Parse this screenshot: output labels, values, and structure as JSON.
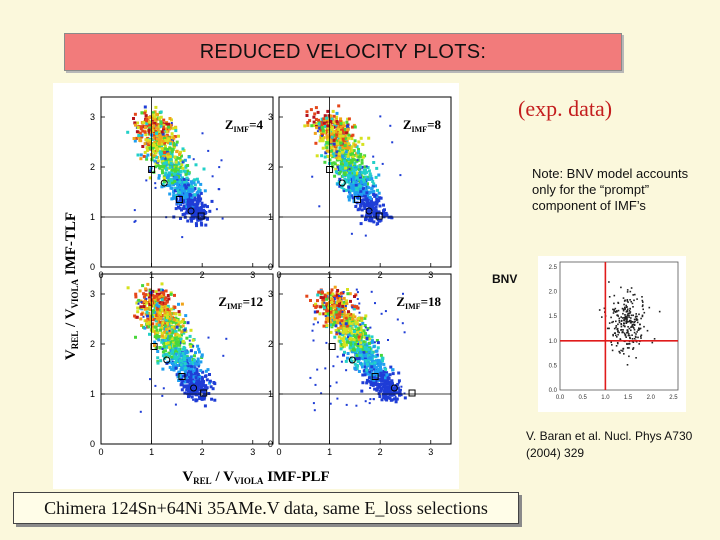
{
  "slide": {
    "title": "REDUCED  VELOCITY PLOTS:",
    "exp_label": "(exp. data)",
    "note": "Note: BNV model accounts only for the “prompt” component of IMF’s",
    "bnv_label": "BNV",
    "reference": "V. Baran et al. Nucl. Phys A730 (2004) 329",
    "footer": "Chimera 124Sn+64Ni  35AMe.V data,  same E_loss selections"
  },
  "chart_data": [
    {
      "type": "heatmap",
      "panels": [
        {
          "label_main": "Z",
          "label_sub": "IMF",
          "label_value": "=4"
        },
        {
          "label_main": "Z",
          "label_sub": "IMF",
          "label_value": "=8"
        },
        {
          "label_main": "Z",
          "label_sub": "IMF",
          "label_value": "=12"
        },
        {
          "label_main": "Z",
          "label_sub": "IMF",
          "label_value": "=18"
        }
      ],
      "y_ticks": [
        "0",
        "1",
        "2",
        "3"
      ],
      "x_ticks": [
        "0",
        "1",
        "2",
        "3"
      ],
      "ylabel_main": "V",
      "ylabel_sub1": "REL",
      "ylabel_mid": " / V",
      "ylabel_sub2": "VIOLA",
      "ylabel_tail": "IMF-TLF",
      "xlabel_main": "V",
      "xlabel_sub1": "REL",
      "xlabel_mid": " / V",
      "xlabel_sub2": "VIOLA",
      "xlabel_tail": "IMF-PLF",
      "xlim": [
        0,
        3.4
      ],
      "ylim": [
        0,
        3.4
      ]
    },
    {
      "type": "scatter",
      "x_ticks": [
        "0.0",
        "0.5",
        "1.0",
        "1.5",
        "2.0",
        "2.5"
      ],
      "y_ticks": [
        "0.0",
        "0.5",
        "1.0",
        "1.5",
        "2.0",
        "2.5"
      ],
      "xlim": [
        0,
        2.6
      ],
      "ylim": [
        0,
        2.6
      ],
      "crosshair": [
        1.0,
        1.0
      ]
    }
  ]
}
